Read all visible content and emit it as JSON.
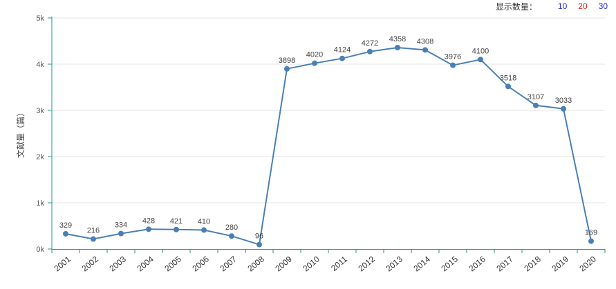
{
  "controls": {
    "count_label": "显示数量：",
    "count_options": [
      {
        "label": "10",
        "color": "#1f2bd8"
      },
      {
        "label": "20",
        "color": "#e01e1e"
      },
      {
        "label": "30",
        "color": "#1f2bd8"
      }
    ]
  },
  "chart_data": {
    "type": "line",
    "title": "",
    "xlabel": "",
    "ylabel": "文献量（篇）",
    "categories": [
      "2001",
      "2002",
      "2003",
      "2004",
      "2005",
      "2006",
      "2007",
      "2008",
      "2009",
      "2010",
      "2011",
      "2012",
      "2013",
      "2014",
      "2015",
      "2016",
      "2017",
      "2018",
      "2019",
      "2020"
    ],
    "series": [
      {
        "values": [
          329,
          216,
          334,
          428,
          421,
          410,
          280,
          96,
          3898,
          4020,
          4124,
          4272,
          4358,
          4308,
          3976,
          4100,
          3518,
          3107,
          3033,
          169
        ]
      }
    ],
    "yticks": [
      0,
      1000,
      2000,
      3000,
      4000,
      5000
    ],
    "ytick_labels": [
      "0k",
      "1k",
      "2k",
      "3k",
      "4k",
      "5k"
    ],
    "ylim": [
      0,
      5000
    ],
    "grid": true,
    "legend": "none",
    "colors": {
      "line": "#4a7fb5",
      "axis": "#1a9a8a",
      "grid": "#e3e3e3"
    }
  }
}
